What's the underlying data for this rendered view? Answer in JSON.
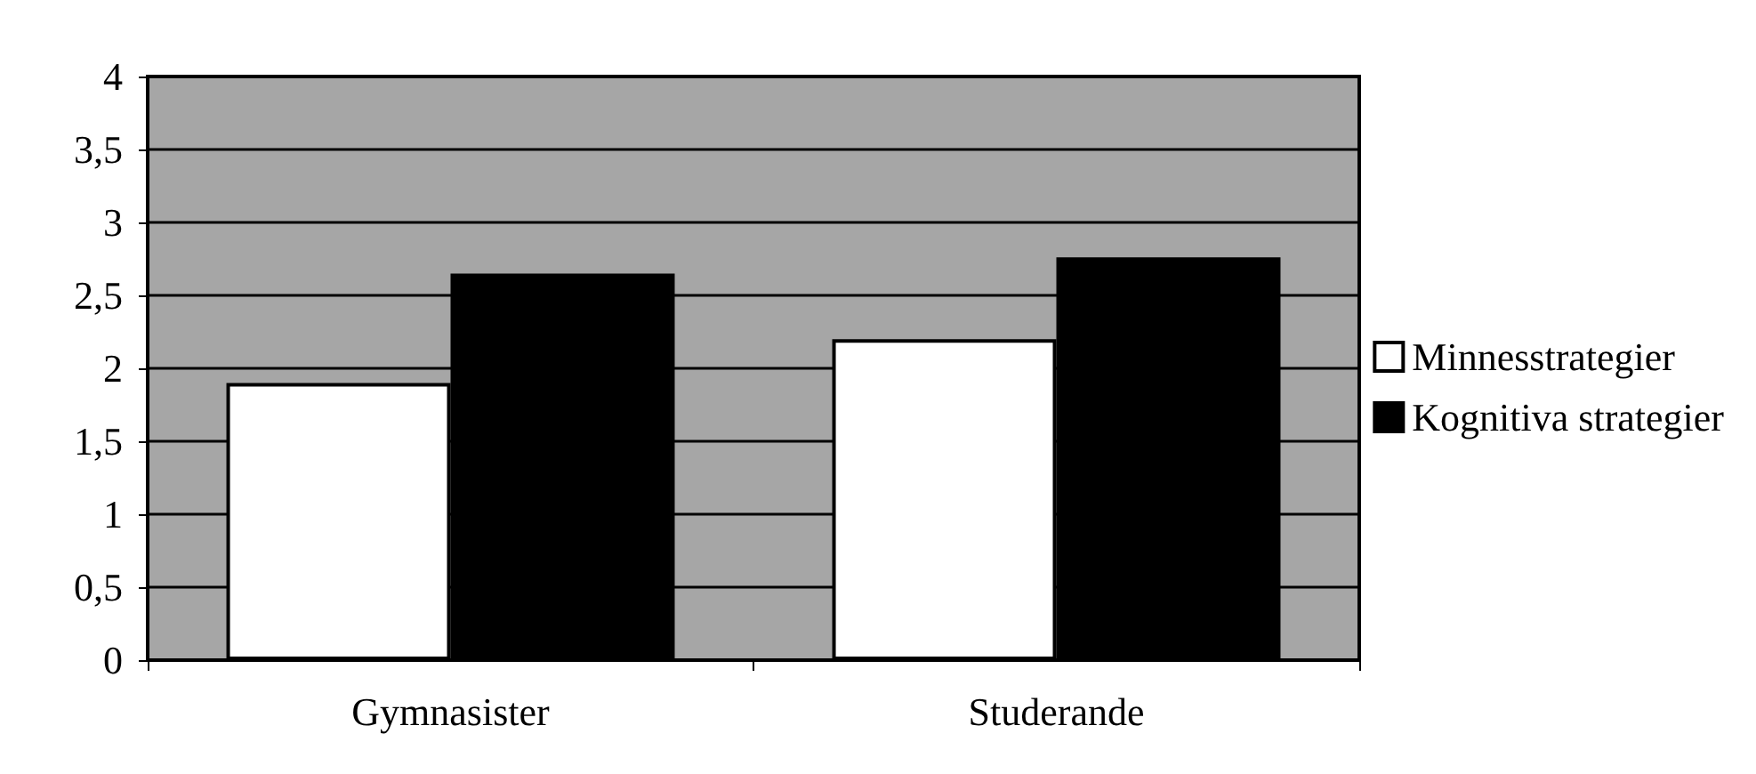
{
  "chart_data": {
    "type": "bar",
    "categories": [
      "Gymnasister",
      "Studerande"
    ],
    "series": [
      {
        "name": "Minnesstrategier",
        "color": "#ffffff",
        "values": [
          1.9,
          2.2
        ]
      },
      {
        "name": "Kognitiva strategier",
        "color": "#000000",
        "values": [
          2.65,
          2.76
        ]
      }
    ],
    "ylim": [
      0,
      4
    ],
    "yticks": [
      0,
      {
        "value": 0.5,
        "label": "0,5"
      },
      1,
      {
        "value": 1.5,
        "label": "1,5"
      },
      2,
      {
        "value": 2.5,
        "label": "2,5"
      },
      3,
      {
        "value": 3.5,
        "label": "3,5"
      },
      4
    ],
    "grid": "y",
    "legend": "right"
  }
}
